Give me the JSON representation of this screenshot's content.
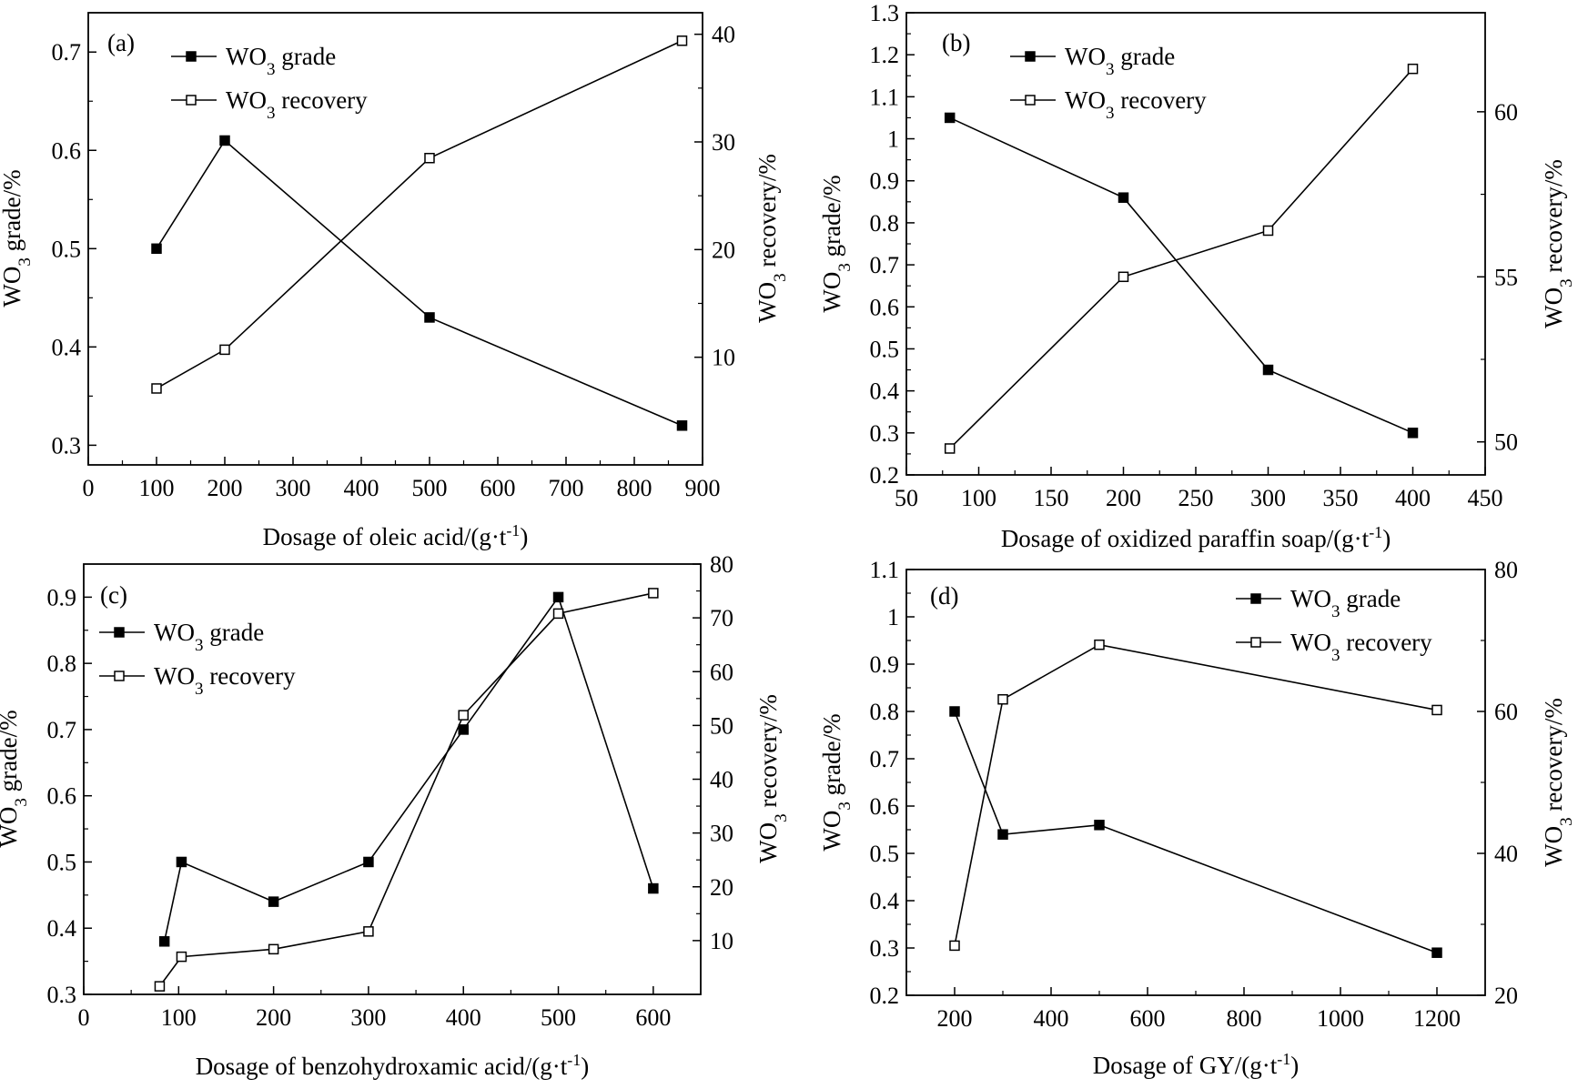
{
  "chart_data": [
    {
      "type": "line",
      "panel_label": "(a)",
      "xlabel": {
        "main": "Dosage of oleic acid/(g·t",
        "sup": "-1",
        "tail": ")"
      },
      "ylabel_left": {
        "pre": "WO",
        "sub": "3",
        "post": " grade/%"
      },
      "ylabel_right": {
        "pre": "WO",
        "sub": "3",
        "post": " recovery/%"
      },
      "xlim": [
        0,
        900
      ],
      "xticks": [
        0,
        100,
        200,
        300,
        400,
        500,
        600,
        700,
        800,
        900
      ],
      "ylim_left": [
        0.28,
        0.74
      ],
      "yticks_left": [
        0.3,
        0.4,
        0.5,
        0.6,
        0.7
      ],
      "ylim_right": [
        0,
        42
      ],
      "yticks_right": [
        10,
        20,
        30,
        40
      ],
      "legend_position": "top-left",
      "series": [
        {
          "name": "grade",
          "axis": "left",
          "marker": "filled-square",
          "x": [
            100,
            200,
            500,
            870
          ],
          "values": [
            0.5,
            0.61,
            0.43,
            0.32
          ]
        },
        {
          "name": "recovery",
          "axis": "right",
          "marker": "open-square",
          "x": [
            100,
            200,
            500,
            870
          ],
          "values": [
            7.1,
            10.7,
            28.5,
            39.4
          ]
        }
      ]
    },
    {
      "type": "line",
      "panel_label": "(b)",
      "xlabel": {
        "main": "Dosage of oxidized paraffin soap/(g·t",
        "sup": "-1",
        "tail": ")"
      },
      "ylabel_left": {
        "pre": "WO",
        "sub": "3",
        "post": " grade/%"
      },
      "ylabel_right": {
        "pre": "WO",
        "sub": "3",
        "post": " recovery/%"
      },
      "xlim": [
        50,
        450
      ],
      "xticks": [
        50,
        100,
        150,
        200,
        250,
        300,
        350,
        400,
        450
      ],
      "ylim_left": [
        0.2,
        1.3
      ],
      "yticks_left": [
        0.2,
        0.3,
        0.4,
        0.5,
        0.6,
        0.7,
        0.8,
        0.9,
        1.0,
        1.1,
        1.2,
        1.3
      ],
      "ylim_right": [
        49,
        63
      ],
      "yticks_right": [
        50,
        55,
        60
      ],
      "legend_position": "top-left",
      "series": [
        {
          "name": "grade",
          "axis": "left",
          "marker": "filled-square",
          "x": [
            80,
            200,
            300,
            400
          ],
          "values": [
            1.05,
            0.86,
            0.45,
            0.3
          ]
        },
        {
          "name": "recovery",
          "axis": "right",
          "marker": "open-square",
          "x": [
            80,
            200,
            300,
            400
          ],
          "values": [
            49.8,
            55.0,
            56.4,
            61.3
          ]
        }
      ]
    },
    {
      "type": "line",
      "panel_label": "(c)",
      "xlabel": {
        "main": "Dosage of benzohydroxamic acid/(g·t",
        "sup": "-1",
        "tail": ")"
      },
      "ylabel_left": {
        "pre": "WO",
        "sub": "3",
        "post": " grade/%"
      },
      "ylabel_right": {
        "pre": "WO",
        "sub": "3",
        "post": " recovery/%"
      },
      "xlim": [
        0,
        650
      ],
      "xticks": [
        0,
        100,
        200,
        300,
        400,
        500,
        600
      ],
      "ylim_left": [
        0.3,
        0.95
      ],
      "yticks_left": [
        0.3,
        0.4,
        0.5,
        0.6,
        0.7,
        0.8,
        0.9
      ],
      "ylim_right": [
        0,
        80
      ],
      "yticks_right": [
        10,
        20,
        30,
        40,
        50,
        60,
        70,
        80
      ],
      "legend_position": "top-left",
      "series": [
        {
          "name": "grade",
          "axis": "left",
          "marker": "filled-square",
          "x": [
            85,
            103,
            200,
            300,
            400,
            500,
            600
          ],
          "values": [
            0.38,
            0.5,
            0.44,
            0.5,
            0.7,
            0.9,
            0.46
          ]
        },
        {
          "name": "recovery",
          "axis": "right",
          "marker": "open-square",
          "x": [
            80,
            103,
            200,
            300,
            400,
            500,
            600
          ],
          "values": [
            1.5,
            7.0,
            8.4,
            11.7,
            51.9,
            70.8,
            74.6
          ]
        }
      ]
    },
    {
      "type": "line",
      "panel_label": "(d)",
      "xlabel": {
        "main": "Dosage of GY/(g·t",
        "sup": "-1",
        "tail": ")"
      },
      "ylabel_left": {
        "pre": "WO",
        "sub": "3",
        "post": " grade/%"
      },
      "ylabel_right": {
        "pre": "WO",
        "sub": "3",
        "post": " recovery/%"
      },
      "xlim": [
        100,
        1300
      ],
      "xticks": [
        200,
        400,
        600,
        800,
        1000,
        1200
      ],
      "ylim_left": [
        0.2,
        1.1
      ],
      "yticks_left": [
        0.2,
        0.3,
        0.4,
        0.5,
        0.6,
        0.7,
        0.8,
        0.9,
        1.0,
        1.1
      ],
      "ylim_right": [
        20,
        80
      ],
      "yticks_right": [
        20,
        40,
        60,
        80
      ],
      "legend_position": "top-right",
      "series": [
        {
          "name": "grade",
          "axis": "left",
          "marker": "filled-square",
          "x": [
            200,
            300,
            500,
            1200
          ],
          "values": [
            0.8,
            0.54,
            0.56,
            0.29
          ]
        },
        {
          "name": "recovery",
          "axis": "right",
          "marker": "open-square",
          "x": [
            200,
            300,
            500,
            1200
          ],
          "values": [
            27.0,
            61.7,
            69.4,
            60.2
          ]
        }
      ]
    }
  ],
  "legend_labels": {
    "grade": {
      "pre": "WO",
      "sub": "3",
      "post": " grade"
    },
    "recovery": {
      "pre": "WO",
      "sub": "3",
      "post": " recovery"
    }
  }
}
